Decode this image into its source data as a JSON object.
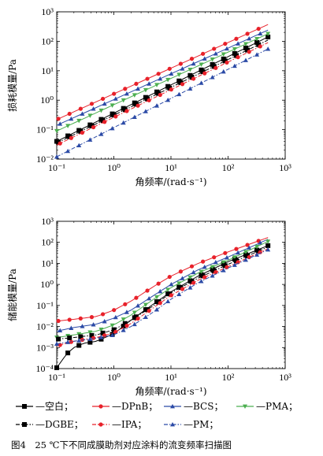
{
  "caption": "图4　25 ℃下不同成膜助剂对应涂料的流变频率扫描图",
  "legend": [
    {
      "name": "空白",
      "color": "#000000",
      "marker": "square",
      "dash": "solid"
    },
    {
      "name": "DPnB",
      "color": "#e8212a",
      "marker": "circle",
      "dash": "solid"
    },
    {
      "name": "BCS",
      "color": "#2b4aa6",
      "marker": "triangle",
      "dash": "solid"
    },
    {
      "name": "PMA",
      "color": "#4caf50",
      "marker": "triangle-down",
      "dash": "solid"
    },
    {
      "name": "DGBE",
      "color": "#000000",
      "marker": "square",
      "dash": "dashdot"
    },
    {
      "name": "IPA",
      "color": "#e8212a",
      "marker": "circle",
      "dash": "dashdot"
    },
    {
      "name": "PM",
      "color": "#2b4aa6",
      "marker": "triangle",
      "dash": "dashdot"
    }
  ],
  "chart_data": [
    {
      "type": "line",
      "xlabel": "角频率/(rad·s⁻¹)",
      "ylabel": "损耗模量/Pa",
      "xscale": "log",
      "yscale": "log",
      "xlim": [
        0.1,
        1000
      ],
      "ylim": [
        0.01,
        1000
      ],
      "xticks": [
        "10⁻¹",
        "10⁰",
        "10¹",
        "10²",
        "10³"
      ],
      "yticks": [
        "10⁻²",
        "10⁻¹",
        "10⁰",
        "10¹",
        "10²",
        "10³"
      ],
      "series": [
        {
          "name": "空白",
          "x": [
            0.1,
            500
          ],
          "y": [
            0.04,
            140
          ]
        },
        {
          "name": "DPnB",
          "x": [
            0.1,
            500
          ],
          "y": [
            0.22,
            370
          ]
        },
        {
          "name": "BCS",
          "x": [
            0.1,
            500
          ],
          "y": [
            0.14,
            240
          ]
        },
        {
          "name": "PMA",
          "x": [
            0.1,
            500
          ],
          "y": [
            0.09,
            180
          ]
        },
        {
          "name": "DGBE",
          "x": [
            0.1,
            500
          ],
          "y": [
            0.035,
            110
          ]
        },
        {
          "name": "IPA",
          "x": [
            0.1,
            500
          ],
          "y": [
            0.03,
            90
          ]
        },
        {
          "name": "PM",
          "x": [
            0.1,
            500
          ],
          "y": [
            0.012,
            55
          ]
        }
      ]
    },
    {
      "type": "line",
      "xlabel": "角频率/(rad·s⁻¹)",
      "ylabel": "储能模量/Pa",
      "xscale": "log",
      "yscale": "log",
      "xlim": [
        0.1,
        1000
      ],
      "ylim": [
        0.0001,
        1000
      ],
      "xticks": [
        "10⁻¹",
        "10⁰",
        "10¹",
        "10²",
        "10³"
      ],
      "yticks": [
        "10⁻⁴",
        "10⁻³",
        "10⁻²",
        "10⁻¹",
        "10⁰",
        "10¹",
        "10²",
        "10³"
      ],
      "series": [
        {
          "name": "空白",
          "x": [
            0.1,
            0.15,
            0.2,
            0.3,
            0.5,
            0.7,
            1,
            2,
            5,
            10,
            30,
            100,
            500
          ],
          "y": [
            0.00011,
            0.0005,
            0.001,
            0.0016,
            0.002,
            0.003,
            0.0045,
            0.02,
            0.12,
            0.45,
            2.5,
            12,
            70
          ]
        },
        {
          "name": "DPnB",
          "x": [
            0.1,
            0.2,
            0.5,
            1,
            2,
            5,
            10,
            30,
            100,
            500
          ],
          "y": [
            0.018,
            0.022,
            0.03,
            0.06,
            0.16,
            0.8,
            2.5,
            10,
            35,
            170
          ]
        },
        {
          "name": "BCS",
          "x": [
            0.1,
            0.2,
            0.5,
            1,
            2,
            5,
            10,
            30,
            100,
            500
          ],
          "y": [
            0.006,
            0.009,
            0.013,
            0.025,
            0.06,
            0.3,
            1,
            5,
            20,
            140
          ]
        },
        {
          "name": "PMA",
          "x": [
            0.1,
            0.2,
            0.5,
            1,
            2,
            5,
            10,
            30,
            100,
            500
          ],
          "y": [
            0.003,
            0.004,
            0.006,
            0.012,
            0.035,
            0.2,
            0.7,
            3.5,
            14,
            110
          ]
        },
        {
          "name": "DGBE",
          "x": [
            0.1,
            0.2,
            0.5,
            1,
            2,
            5,
            10,
            30,
            100,
            500
          ],
          "y": [
            0.0025,
            0.003,
            0.004,
            0.007,
            0.02,
            0.1,
            0.4,
            2,
            9,
            60
          ]
        },
        {
          "name": "IPA",
          "x": [
            0.1,
            0.2,
            0.5,
            1,
            2,
            5,
            10,
            30,
            100,
            500
          ],
          "y": [
            0.0012,
            0.002,
            0.003,
            0.005,
            0.014,
            0.08,
            0.3,
            1.6,
            7,
            50
          ]
        },
        {
          "name": "PM",
          "x": [
            0.1,
            0.2,
            0.5,
            1,
            2,
            5,
            10,
            30,
            100,
            500
          ],
          "y": [
            0.0015,
            0.002,
            0.0028,
            0.004,
            0.01,
            0.05,
            0.2,
            1.2,
            6,
            45
          ]
        }
      ]
    }
  ]
}
